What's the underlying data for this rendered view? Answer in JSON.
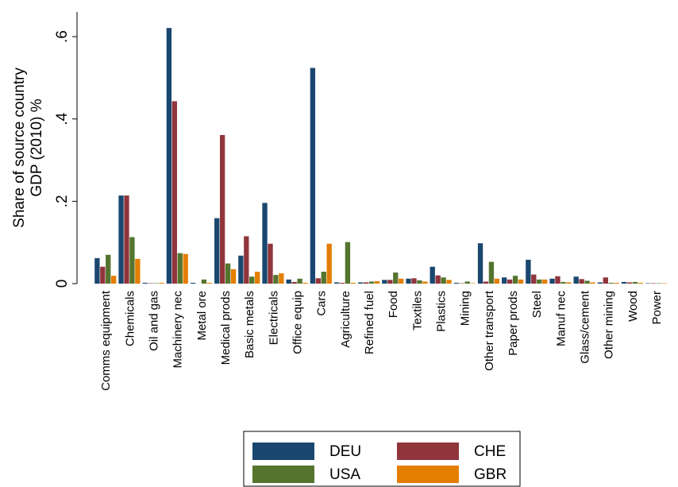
{
  "chart_data": {
    "type": "bar",
    "ylabel": [
      "Share of source country",
      "GDP (2010) %"
    ],
    "categories": [
      "Comms equipment",
      "Chemicals",
      "Oil and gas",
      "Machinery nec",
      "Metal ore",
      "Medical prods",
      "Basic metals",
      "Electricals",
      "Office equip",
      "Cars",
      "Agriculture",
      "Refined fuel",
      "Food",
      "Textiles",
      "Plastics",
      "Mining",
      "Other transport",
      "Paper prods",
      "Steel",
      "Manuf nec",
      "Glass/cement",
      "Other mining",
      "Wood",
      "Power"
    ],
    "series": [
      {
        "name": "DEU",
        "color": "#1a476f",
        "values": [
          0.062,
          0.214,
          0.002,
          0.621,
          0.002,
          0.159,
          0.068,
          0.196,
          0.01,
          0.524,
          0.003,
          0.003,
          0.009,
          0.012,
          0.041,
          0.002,
          0.098,
          0.015,
          0.058,
          0.012,
          0.017,
          0.003,
          0.004,
          0.001
        ]
      },
      {
        "name": "CHE",
        "color": "#90353b",
        "values": [
          0.041,
          0.214,
          0.001,
          0.443,
          0,
          0.361,
          0.115,
          0.097,
          0.004,
          0.013,
          0.002,
          0.003,
          0.009,
          0.013,
          0.02,
          0.001,
          0.005,
          0.01,
          0.022,
          0.018,
          0.011,
          0.015,
          0.003,
          0.001
        ]
      },
      {
        "name": "USA",
        "color": "#55752f",
        "values": [
          0.07,
          0.113,
          0.001,
          0.074,
          0.01,
          0.049,
          0.017,
          0.021,
          0.012,
          0.029,
          0.101,
          0.005,
          0.027,
          0.008,
          0.015,
          0.005,
          0.053,
          0.019,
          0.01,
          0.004,
          0.007,
          0.002,
          0.004,
          0.001
        ]
      },
      {
        "name": "GBR",
        "color": "#e37e00",
        "values": [
          0.019,
          0.06,
          0.002,
          0.072,
          0.002,
          0.035,
          0.029,
          0.025,
          0.002,
          0.097,
          0.002,
          0.006,
          0.012,
          0.005,
          0.009,
          0.001,
          0.012,
          0.01,
          0.01,
          0.003,
          0.003,
          0.002,
          0.002,
          0.001
        ]
      }
    ],
    "ylim": [
      0,
      0.66
    ],
    "yticks": [
      0,
      {
        "value": 0.2,
        "label": ".2"
      },
      {
        "value": 0.4,
        "label": ".4"
      },
      {
        "value": 0.6,
        "label": ".6"
      }
    ],
    "grid": false,
    "legend_position": "bottom"
  }
}
